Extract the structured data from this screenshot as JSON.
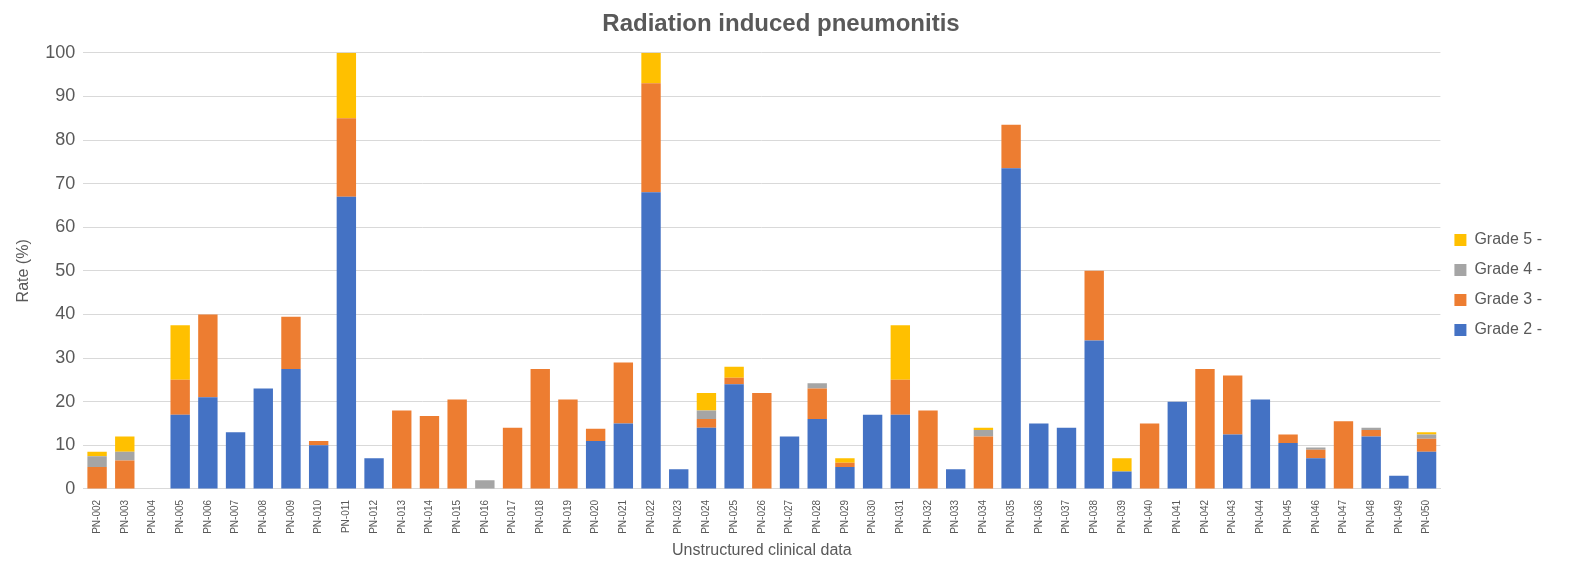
{
  "chart_data": {
    "type": "bar",
    "title": "Radiation induced pneumonitis",
    "x_label": "Unstructured clinical data",
    "y_label": "Rate (%)",
    "categories": [
      "PN-002",
      "PN-003",
      "PN-004",
      "PN-005",
      "PN-006",
      "PN-007",
      "PN-008",
      "PN-009",
      "PN-010",
      "PN-011",
      "PN-012",
      "PN-013",
      "PN-014",
      "PN-015",
      "PN-016",
      "PN-017",
      "PN-018",
      "PN-019",
      "PN-020",
      "PN-021",
      "PN-022",
      "PN-023",
      "PN-024",
      "PN-025",
      "PN-026",
      "PN-027",
      "PN-028",
      "PN-029",
      "PN-030",
      "PN-031",
      "PN-032",
      "PN-033",
      "PN-034",
      "PN-035",
      "PN-036",
      "PN-037",
      "PN-038",
      "PN-039",
      "PN-040",
      "PN-041",
      "PN-042",
      "PN-043",
      "PN-044",
      "PN-045",
      "PN-046",
      "PN-047",
      "PN-048",
      "PN-049",
      "PN-050"
    ],
    "series": [
      {
        "name": "Grade 2 -",
        "color": "#4472c4",
        "values": [
          0,
          0,
          0,
          17,
          21,
          13,
          23,
          27.5,
          10,
          67,
          7,
          0,
          0,
          0,
          0,
          0,
          0,
          0,
          11,
          15,
          68,
          4.5,
          14,
          24,
          0,
          12,
          16,
          5,
          17,
          17,
          0,
          4.5,
          0,
          73.5,
          15,
          14,
          34,
          4,
          0,
          20,
          0,
          12.5,
          20.5,
          10.5,
          7,
          0,
          12,
          3,
          8.5
        ]
      },
      {
        "name": "Grade 3 -",
        "color": "#ed7d31",
        "values": [
          5,
          6.5,
          0,
          8,
          19,
          0,
          0,
          12,
          1,
          18,
          0,
          18,
          16.7,
          20.5,
          0,
          14,
          27.5,
          20.5,
          2.8,
          14,
          25,
          0,
          2,
          1.5,
          22,
          0,
          7,
          1,
          0,
          8,
          18,
          0,
          12,
          10,
          0,
          0,
          16,
          0,
          15,
          0,
          27.5,
          13.5,
          0,
          2,
          2,
          15.5,
          1.5,
          0,
          3
        ]
      },
      {
        "name": "Grade 4 -",
        "color": "#a5a5a5",
        "values": [
          2.5,
          2,
          0,
          0,
          0,
          0,
          0,
          0,
          0,
          0,
          0,
          0,
          0,
          0,
          2,
          0,
          0,
          0,
          0,
          0,
          0,
          0,
          2,
          0,
          0,
          0,
          1.2,
          0,
          0,
          0,
          0,
          0,
          1.5,
          0,
          0,
          0,
          0,
          0,
          0,
          0,
          0,
          0,
          0,
          0,
          0.5,
          0,
          0.5,
          0,
          1
        ]
      },
      {
        "name": "Grade 5 -",
        "color": "#ffc000",
        "values": [
          1,
          3.5,
          0,
          12.5,
          0,
          0,
          0,
          0,
          0,
          15,
          0,
          0,
          0,
          0,
          0,
          0,
          0,
          0,
          0,
          0,
          7,
          0,
          4,
          2.5,
          0,
          0,
          0,
          1,
          0,
          12.5,
          0,
          0,
          0.5,
          0,
          0,
          0,
          0,
          3,
          0,
          0,
          0,
          0,
          0,
          0,
          0,
          0,
          0,
          0,
          0.5
        ]
      }
    ],
    "ylim": [
      0,
      100
    ],
    "yticks": [
      0,
      10,
      20,
      30,
      40,
      50,
      60,
      70,
      80,
      90,
      100
    ],
    "stacked": true,
    "grid": true,
    "legend": "right"
  }
}
